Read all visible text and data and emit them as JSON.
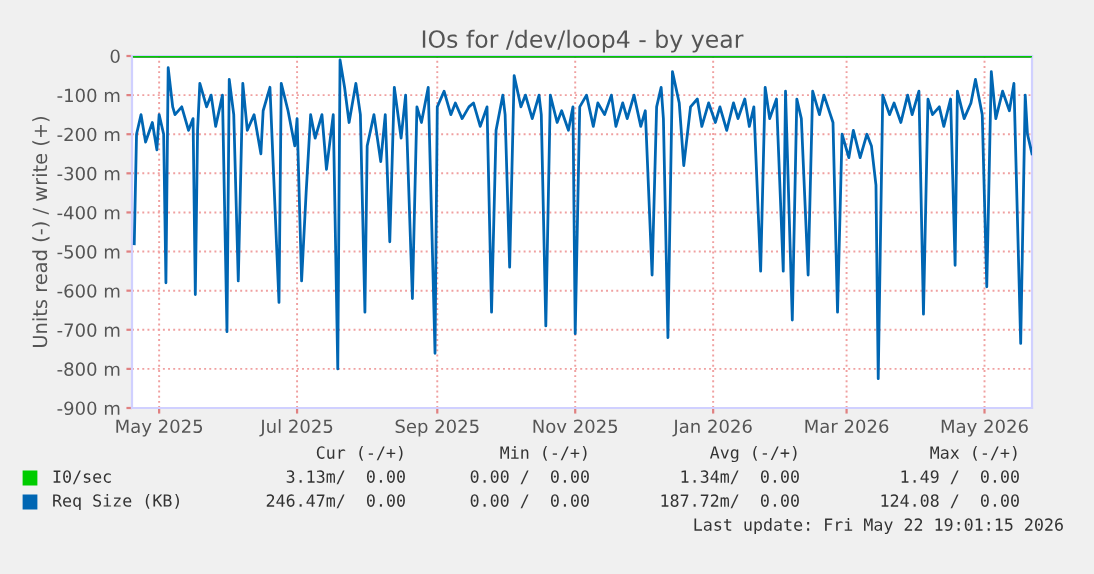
{
  "chart_data": {
    "type": "line",
    "title": "IOs for /dev/loop4 - by year",
    "ylabel": "Units read (-) / write (+)",
    "xlim": [
      "2025-04-19",
      "2026-05-22"
    ],
    "xticks": [
      {
        "value": "2025-05-01",
        "label": "May 2025"
      },
      {
        "value": "2025-07-01",
        "label": "Jul 2025"
      },
      {
        "value": "2025-09-01",
        "label": "Sep 2025"
      },
      {
        "value": "2025-11-01",
        "label": "Nov 2025"
      },
      {
        "value": "2026-01-01",
        "label": "Jan 2026"
      },
      {
        "value": "2026-03-01",
        "label": "Mar 2026"
      },
      {
        "value": "2026-05-01",
        "label": "May 2026"
      }
    ],
    "ylim": [
      -900,
      0
    ],
    "yticks": [
      {
        "value": -900,
        "label": "-900 m"
      },
      {
        "value": -800,
        "label": "-800 m"
      },
      {
        "value": -700,
        "label": "-700 m"
      },
      {
        "value": -600,
        "label": "-600 m"
      },
      {
        "value": -500,
        "label": "-500 m"
      },
      {
        "value": -400,
        "label": "-400 m"
      },
      {
        "value": -300,
        "label": "-300 m"
      },
      {
        "value": -200,
        "label": "-200 m"
      },
      {
        "value": -100,
        "label": "-100 m"
      },
      0
    ],
    "grid": true,
    "legend": "bottom left",
    "ref_lines": [
      {
        "axis": "y",
        "value": 0,
        "label": null,
        "color": "#000000"
      }
    ],
    "series": [
      {
        "name": "I0/sec",
        "color": "#00cc00",
        "x": [
          "2025-04-20",
          "2025-05-10",
          "2025-06-15",
          "2025-07-20",
          "2025-08-20",
          "2025-09-20",
          "2025-10-20",
          "2025-11-20",
          "2025-12-20",
          "2026-01-20",
          "2026-02-20",
          "2026-03-20",
          "2026-04-20",
          "2026-05-22"
        ],
        "values": [
          0,
          0,
          0,
          0,
          0,
          0,
          0,
          0,
          0,
          0,
          0,
          0,
          0,
          0
        ]
      },
      {
        "name": "Req Size (KB)",
        "color": "#0066b3",
        "x": [
          "2025-04-20",
          "2025-04-21",
          "2025-04-23",
          "2025-04-25",
          "2025-04-28",
          "2025-04-30",
          "2025-05-01",
          "2025-05-03",
          "2025-05-04",
          "2025-05-05",
          "2025-05-07",
          "2025-05-08",
          "2025-05-11",
          "2025-05-14",
          "2025-05-16",
          "2025-05-17",
          "2025-05-18",
          "2025-05-19",
          "2025-05-22",
          "2025-05-24",
          "2025-05-26",
          "2025-05-29",
          "2025-05-31",
          "2025-06-01",
          "2025-06-03",
          "2025-06-05",
          "2025-06-07",
          "2025-06-09",
          "2025-06-12",
          "2025-06-15",
          "2025-06-16",
          "2025-06-19",
          "2025-06-23",
          "2025-06-24",
          "2025-06-27",
          "2025-06-30",
          "2025-07-01",
          "2025-07-03",
          "2025-07-05",
          "2025-07-07",
          "2025-07-09",
          "2025-07-12",
          "2025-07-14",
          "2025-07-17",
          "2025-07-19",
          "2025-07-20",
          "2025-07-22",
          "2025-07-24",
          "2025-07-27",
          "2025-07-29",
          "2025-07-31",
          "2025-08-01",
          "2025-08-04",
          "2025-08-07",
          "2025-08-09",
          "2025-08-11",
          "2025-08-13",
          "2025-08-16",
          "2025-08-18",
          "2025-08-21",
          "2025-08-23",
          "2025-08-25",
          "2025-08-28",
          "2025-08-31",
          "2025-09-01",
          "2025-09-04",
          "2025-09-07",
          "2025-09-09",
          "2025-09-12",
          "2025-09-15",
          "2025-09-17",
          "2025-09-20",
          "2025-09-23",
          "2025-09-25",
          "2025-09-27",
          "2025-09-30",
          "2025-10-01",
          "2025-10-03",
          "2025-10-05",
          "2025-10-08",
          "2025-10-10",
          "2025-10-13",
          "2025-10-16",
          "2025-10-17",
          "2025-10-19",
          "2025-10-21",
          "2025-10-24",
          "2025-10-26",
          "2025-10-29",
          "2025-10-31",
          "2025-11-01",
          "2025-11-03",
          "2025-11-06",
          "2025-11-09",
          "2025-11-11",
          "2025-11-14",
          "2025-11-17",
          "2025-11-19",
          "2025-11-22",
          "2025-11-24",
          "2025-11-27",
          "2025-11-30",
          "2025-12-02",
          "2025-12-05",
          "2025-12-07",
          "2025-12-09",
          "2025-12-10",
          "2025-12-12",
          "2025-12-14",
          "2025-12-17",
          "2025-12-19",
          "2025-12-22",
          "2025-12-25",
          "2025-12-27",
          "2025-12-30",
          "2026-01-02",
          "2026-01-04",
          "2026-01-07",
          "2026-01-10",
          "2026-01-12",
          "2026-01-15",
          "2026-01-17",
          "2026-01-19",
          "2026-01-22",
          "2026-01-24",
          "2026-01-26",
          "2026-01-29",
          "2026-02-01",
          "2026-02-02",
          "2026-02-05",
          "2026-02-07",
          "2026-02-09",
          "2026-02-12",
          "2026-02-14",
          "2026-02-17",
          "2026-02-19",
          "2026-02-23",
          "2026-02-25",
          "2026-02-27",
          "2026-03-02",
          "2026-03-04",
          "2026-03-07",
          "2026-03-10",
          "2026-03-12",
          "2026-03-14",
          "2026-03-15",
          "2026-03-17",
          "2026-03-20",
          "2026-03-22",
          "2026-03-25",
          "2026-03-28",
          "2026-03-30",
          "2026-04-02",
          "2026-04-04",
          "2026-04-06",
          "2026-04-08",
          "2026-04-11",
          "2026-04-13",
          "2026-04-16",
          "2026-04-18",
          "2026-04-19",
          "2026-04-22",
          "2026-04-25",
          "2026-04-27",
          "2026-04-30",
          "2026-05-02",
          "2026-05-04",
          "2026-05-06",
          "2026-05-09",
          "2026-05-12",
          "2026-05-14",
          "2026-05-17",
          "2026-05-19",
          "2026-05-20",
          "2026-05-22"
        ],
        "values": [
          -480,
          -200,
          -150,
          -220,
          -170,
          -240,
          -150,
          -200,
          -580,
          -30,
          -130,
          -150,
          -130,
          -190,
          -160,
          -610,
          -190,
          -70,
          -130,
          -100,
          -180,
          -100,
          -705,
          -60,
          -150,
          -575,
          -70,
          -190,
          -150,
          -250,
          -140,
          -80,
          -630,
          -70,
          -140,
          -230,
          -160,
          -575,
          -350,
          -150,
          -210,
          -150,
          -290,
          -150,
          -800,
          -10,
          -80,
          -170,
          -70,
          -150,
          -655,
          -230,
          -150,
          -270,
          -150,
          -475,
          -80,
          -210,
          -100,
          -620,
          -130,
          -170,
          -80,
          -760,
          -130,
          -90,
          -150,
          -120,
          -160,
          -130,
          -120,
          -180,
          -130,
          -655,
          -190,
          -100,
          -150,
          -540,
          -50,
          -130,
          -100,
          -160,
          -100,
          -150,
          -690,
          -100,
          -170,
          -140,
          -190,
          -130,
          -710,
          -130,
          -100,
          -180,
          -120,
          -150,
          -100,
          -180,
          -120,
          -160,
          -100,
          -180,
          -140,
          -560,
          -130,
          -80,
          -160,
          -720,
          -40,
          -120,
          -280,
          -130,
          -110,
          -180,
          -120,
          -170,
          -130,
          -190,
          -120,
          -160,
          -110,
          -180,
          -130,
          -550,
          -80,
          -160,
          -110,
          -550,
          -90,
          -675,
          -110,
          -160,
          -560,
          -90,
          -150,
          -100,
          -170,
          -655,
          -200,
          -260,
          -190,
          -260,
          -200,
          -230,
          -330,
          -825,
          -100,
          -150,
          -120,
          -170,
          -100,
          -150,
          -90,
          -660,
          -110,
          -150,
          -130,
          -180,
          -110,
          -535,
          -90,
          -160,
          -120,
          -60,
          -150,
          -590,
          -40,
          -160,
          -90,
          -140,
          -70,
          -735,
          -100,
          -200,
          -250
        ]
      }
    ],
    "annotations": [
      "Cur (-/+)",
      "Min (-/+)",
      "Avg (-/+)",
      "Max (-/+)",
      "3.13m/  0.00",
      "0.00 /  0.00",
      "1.34m/  0.00",
      "1.49 /  0.00",
      "246.47m/  0.00",
      "0.00 /  0.00",
      "187.72m/  0.00",
      "124.08 /  0.00",
      "Last update: Fri May 22 19:01:15 2026"
    ]
  }
}
